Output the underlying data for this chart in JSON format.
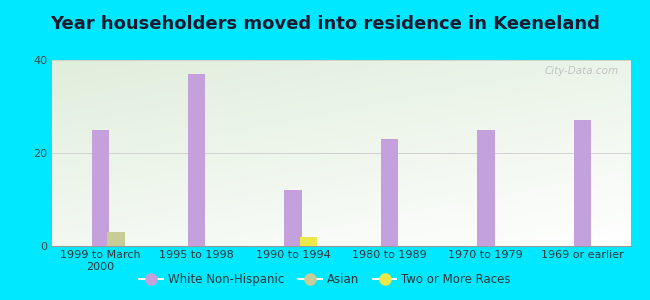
{
  "title": "Year householders moved into residence in Keeneland",
  "categories": [
    "1999 to March\n2000",
    "1995 to 1998",
    "1990 to 1994",
    "1980 to 1989",
    "1970 to 1979",
    "1969 or earlier"
  ],
  "white_non_hispanic": [
    25,
    37,
    12,
    23,
    25,
    27
  ],
  "asian": [
    3,
    0,
    0,
    0,
    0,
    0
  ],
  "two_or_more_races": [
    0,
    0,
    2,
    0,
    0,
    0
  ],
  "bar_width": 0.18,
  "ylim": [
    0,
    40
  ],
  "yticks": [
    0,
    20,
    40
  ],
  "color_white": "#c4a0dc",
  "color_asian": "#c8cc96",
  "color_two_more": "#ede84a",
  "bg_outer": "#00e8ff",
  "watermark": "City-Data.com",
  "title_fontsize": 13,
  "tick_fontsize": 8,
  "legend_fontsize": 8.5
}
